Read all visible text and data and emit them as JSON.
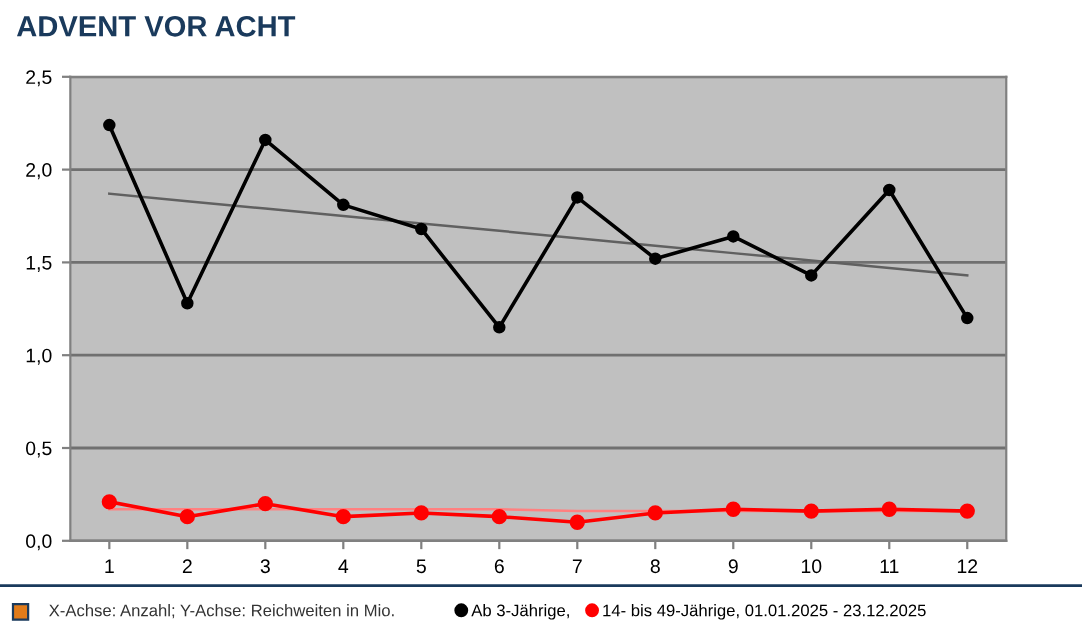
{
  "chart_data": {
    "type": "line",
    "title": "ADVENT VOR ACHT",
    "x": [
      1,
      2,
      3,
      4,
      5,
      6,
      7,
      8,
      9,
      10,
      11,
      12
    ],
    "xlim": [
      0.5,
      12.5
    ],
    "xticks": [
      1,
      2,
      3,
      4,
      5,
      6,
      7,
      8,
      9,
      10,
      11,
      12
    ],
    "ylim": [
      0,
      2.5
    ],
    "yticks": [
      {
        "value": 0,
        "label": "0,0"
      },
      {
        "value": 0.5,
        "label": "0,5"
      },
      {
        "value": 1,
        "label": "1,0"
      },
      {
        "value": 1.5,
        "label": "1,5"
      },
      {
        "value": 2,
        "label": "2,0"
      },
      {
        "value": 2.5,
        "label": "2,5"
      }
    ],
    "grid": "y",
    "legend": "bottom",
    "marker": "circle",
    "line_style": "solid",
    "series": [
      {
        "name": "Ab 3-Jährige,",
        "color": "#000000",
        "values": [
          2.24,
          1.28,
          2.16,
          1.81,
          1.68,
          1.15,
          1.85,
          1.52,
          1.64,
          1.43,
          1.89,
          1.2
        ]
      },
      {
        "name": "14- bis 49-Jährige, 01.01.2025 - 23.12.2025",
        "color": "#ff0000",
        "values": [
          0.21,
          0.13,
          0.2,
          0.13,
          0.15,
          0.13,
          0.1,
          0.15,
          0.17,
          0.16,
          0.17,
          0.16
        ]
      },
      {
        "type": "line",
        "marker": "none",
        "color": "#606060",
        "values": [
          1.87,
          1.83,
          1.79,
          1.75,
          1.71,
          1.67,
          1.63,
          1.59,
          1.55,
          1.51,
          1.47,
          1.43
        ]
      },
      {
        "type": "line",
        "marker": "none",
        "color": "#ff8080",
        "values": [
          0.17,
          0.17,
          0.17,
          0.17,
          0.17,
          0.17,
          0.16,
          0.16,
          0.16,
          0.16,
          0.16,
          0.16
        ]
      }
    ],
    "annotations": [
      "X-Achse: Anzahl; Y-Achse: Reichweiten in Mio."
    ]
  }
}
